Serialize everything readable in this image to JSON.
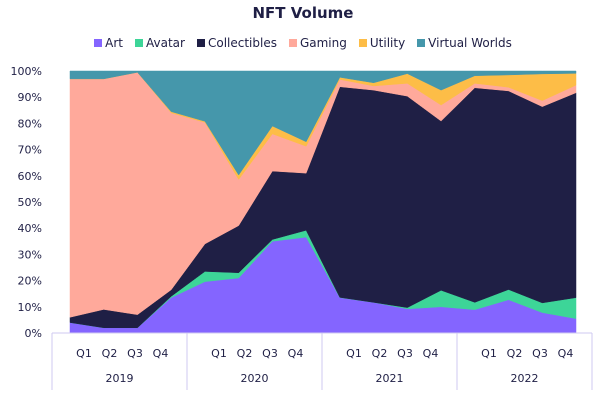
{
  "chart_data": {
    "type": "area",
    "stacked": true,
    "title": "NFT Volume",
    "xlabel": "",
    "ylabel": "",
    "ylim": [
      0,
      100
    ],
    "y_ticks": [
      "0%",
      "10%",
      "20%",
      "30%",
      "40%",
      "50%",
      "60%",
      "70%",
      "80%",
      "90%",
      "100%"
    ],
    "legend_position": "top",
    "grid": false,
    "categories": [
      "Q1",
      "Q2",
      "Q3",
      "Q4",
      "Q1",
      "Q2",
      "Q3",
      "Q4",
      "Q1",
      "Q2",
      "Q3",
      "Q4",
      "Q1",
      "Q2",
      "Q3",
      "Q4"
    ],
    "years": [
      "2019",
      "2020",
      "2021",
      "2022"
    ],
    "series": [
      {
        "name": "Art",
        "color": "#8465ff",
        "values": [
          4,
          2,
          2,
          13.5,
          19.6,
          21,
          35,
          36.6,
          13.5,
          11.7,
          9.2,
          10,
          8.9,
          12.7,
          7.8,
          5.5
        ]
      },
      {
        "name": "Avatar",
        "color": "#3dd598",
        "values": [
          0,
          0,
          0,
          0.5,
          3.9,
          2,
          0.7,
          2.6,
          0.1,
          0,
          0.5,
          6.3,
          2.8,
          3.9,
          3.7,
          8
        ]
      },
      {
        "name": "Collectibles",
        "color": "#1f1f45",
        "values": [
          2,
          7,
          5,
          2.5,
          10.5,
          18,
          26.1,
          21.8,
          80.4,
          81,
          80.7,
          64.6,
          81.9,
          75.8,
          74.9,
          78.2
        ]
      },
      {
        "name": "Gaming",
        "color": "#ffa99b",
        "values": [
          91,
          88,
          92.5,
          67.5,
          46.4,
          17.6,
          14.2,
          10.3,
          2.8,
          1.6,
          4.9,
          6.1,
          1.7,
          1.4,
          2.3,
          2.9
        ]
      },
      {
        "name": "Utility",
        "color": "#fdbd47",
        "values": [
          0,
          0,
          0,
          0.5,
          0.4,
          1.7,
          3,
          1.7,
          0.8,
          1.2,
          3.7,
          5.7,
          2.9,
          4.7,
          10.2,
          4.5
        ]
      },
      {
        "name": "Virtual Worlds",
        "color": "#4597ab",
        "values": [
          3,
          3,
          0.5,
          15.5,
          19.2,
          39.7,
          21,
          27,
          2.4,
          4.5,
          1,
          7.3,
          1.8,
          1.5,
          1.1,
          0.9
        ]
      }
    ]
  }
}
